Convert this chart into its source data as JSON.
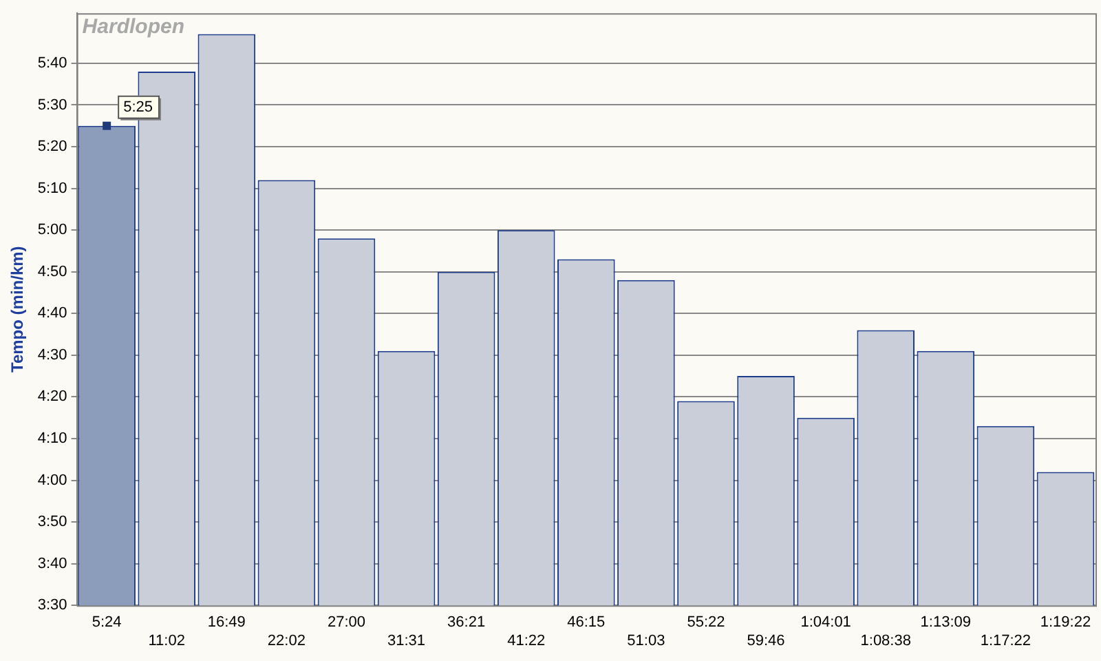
{
  "chart_data": {
    "type": "bar",
    "title": "Hardlopen",
    "ylabel": "Tempo (min/km)",
    "categories": [
      "5:24",
      "11:02",
      "16:49",
      "22:02",
      "27:00",
      "31:31",
      "36:21",
      "41:22",
      "46:15",
      "51:03",
      "55:22",
      "59:46",
      "1:04:01",
      "1:08:38",
      "1:13:09",
      "1:17:22",
      "1:19:22"
    ],
    "values": [
      325,
      338,
      347,
      312,
      298,
      271,
      290,
      300,
      293,
      288,
      259,
      265,
      255,
      276,
      271,
      253,
      242
    ],
    "colors": [
      "#8b9dbb",
      "#c9ced9",
      "#c9ced9",
      "#c9ced9",
      "#c9ced9",
      "#c9ced9",
      "#c9ced9",
      "#c9ced9",
      "#c9ced9",
      "#c9ced9",
      "#c9ced9",
      "#c9ced9",
      "#c9ced9",
      "#c9ced9",
      "#c9ced9",
      "#c9ced9",
      "#c9ced9"
    ],
    "ylim": [
      210,
      352
    ],
    "yticks": [
      {
        "value": 210,
        "label": "3:30"
      },
      {
        "value": 220,
        "label": "3:40"
      },
      {
        "value": 230,
        "label": "3:50"
      },
      {
        "value": 240,
        "label": "4:00"
      },
      {
        "value": 250,
        "label": "4:10"
      },
      {
        "value": 260,
        "label": "4:20"
      },
      {
        "value": 270,
        "label": "4:30"
      },
      {
        "value": 280,
        "label": "4:40"
      },
      {
        "value": 290,
        "label": "4:50"
      },
      {
        "value": 300,
        "label": "5:00"
      },
      {
        "value": 310,
        "label": "5:10"
      },
      {
        "value": 320,
        "label": "5:20"
      },
      {
        "value": 330,
        "label": "5:30"
      },
      {
        "value": 340,
        "label": "5:40"
      }
    ],
    "grid": "y",
    "legend": false,
    "annotations": [
      {
        "text": "5:25",
        "x": "5:24",
        "y": 325
      }
    ]
  }
}
